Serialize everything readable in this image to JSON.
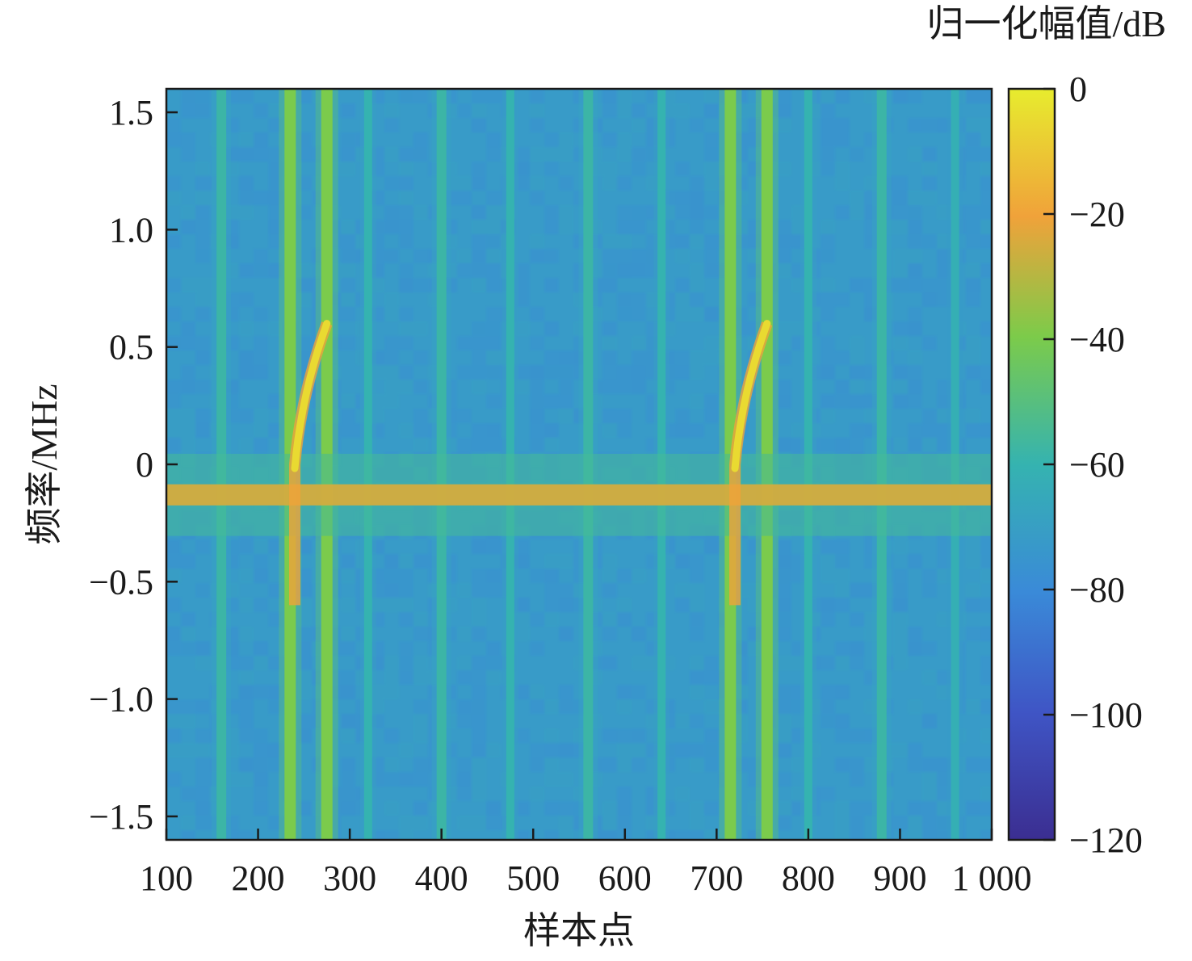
{
  "chart_data": {
    "type": "heatmap",
    "xlabel": "样本点",
    "ylabel": "频率/MHz",
    "colorbar_label": "归一化幅值/dB",
    "xlim": [
      100,
      1000
    ],
    "ylim": [
      -1.6,
      1.6
    ],
    "x_ticks": [
      100,
      200,
      300,
      400,
      500,
      600,
      700,
      800,
      900,
      1000
    ],
    "x_tick_labels": [
      "100",
      "200",
      "300",
      "400",
      "500",
      "600",
      "700",
      "800",
      "900",
      "1 000"
    ],
    "y_ticks": [
      1.5,
      1.0,
      0.5,
      0,
      -0.5,
      -1.0,
      -1.5
    ],
    "y_tick_labels": [
      "1.5",
      "1.0",
      "0.5",
      "0",
      "−0.5",
      "−1.0",
      "−1.5"
    ],
    "colorbar_range": [
      -120,
      0
    ],
    "colorbar_ticks": [
      0,
      -20,
      -40,
      -60,
      -80,
      -100,
      -120
    ],
    "colorbar_tick_labels": [
      "0",
      "−20",
      "−40",
      "−60",
      "−80",
      "−100",
      "−120"
    ],
    "background_level_db": -72,
    "horizontal_bands": [
      {
        "center_mhz": -0.13,
        "width_mhz": 0.09,
        "level_db": -25
      },
      {
        "center_mhz": -0.13,
        "width_mhz": 0.35,
        "level_db": -55
      }
    ],
    "vertical_lines": [
      {
        "x": 160,
        "level_db": -58,
        "width": 12
      },
      {
        "x": 235,
        "level_db": -40,
        "width": 14
      },
      {
        "x": 275,
        "level_db": -40,
        "width": 14
      },
      {
        "x": 320,
        "level_db": -60,
        "width": 10
      },
      {
        "x": 400,
        "level_db": -58,
        "width": 12
      },
      {
        "x": 475,
        "level_db": -60,
        "width": 10
      },
      {
        "x": 560,
        "level_db": -58,
        "width": 12
      },
      {
        "x": 640,
        "level_db": -60,
        "width": 10
      },
      {
        "x": 715,
        "level_db": -40,
        "width": 14
      },
      {
        "x": 755,
        "level_db": -40,
        "width": 14
      },
      {
        "x": 800,
        "level_db": -60,
        "width": 10
      },
      {
        "x": 880,
        "level_db": -58,
        "width": 12
      },
      {
        "x": 960,
        "level_db": -62,
        "width": 10
      }
    ],
    "chirps": [
      {
        "x_start": 240,
        "x_end": 275,
        "f_start_mhz": 0.0,
        "f_end_mhz": 0.6,
        "level_db": -5
      },
      {
        "x_start": 720,
        "x_end": 755,
        "f_start_mhz": 0.0,
        "f_end_mhz": 0.6,
        "level_db": -5
      }
    ]
  }
}
